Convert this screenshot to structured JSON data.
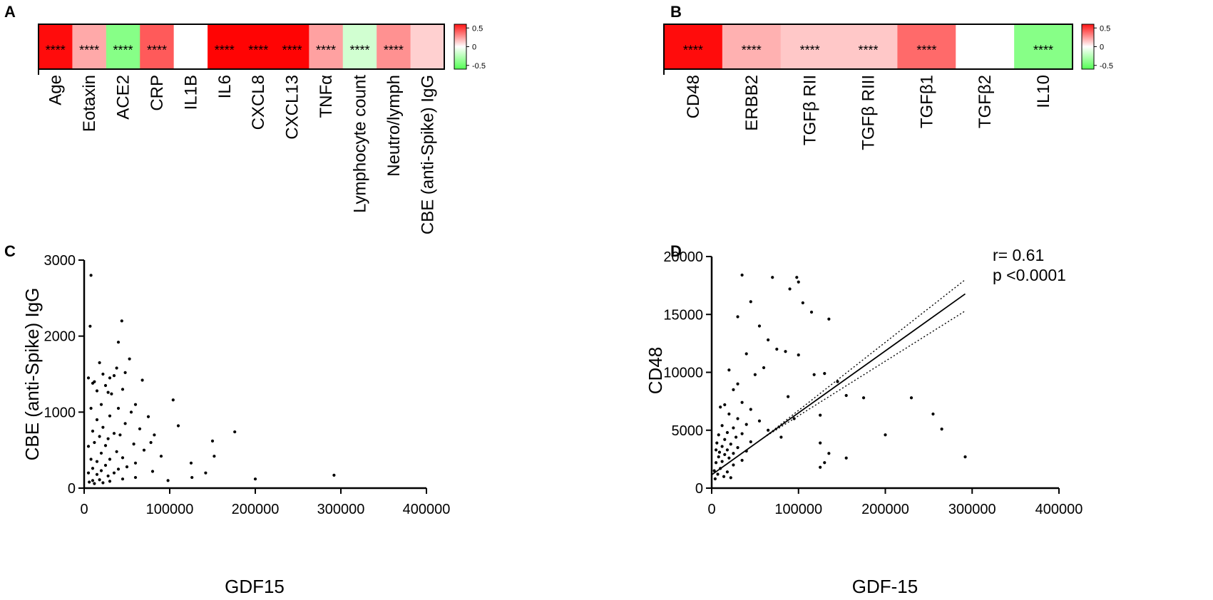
{
  "chart_data": [
    {
      "panel": "A",
      "type": "heatmap",
      "categories": [
        "Age",
        "Eotaxin",
        "ACE2",
        "CRP",
        "IL1B",
        "IL6",
        "CXCL8",
        "CXCL13",
        "TNFα",
        "Lymphocyte count",
        "Neutro/lymph",
        "CBE (anti-Spike) IgG"
      ],
      "values": [
        0.62,
        0.22,
        -0.42,
        0.42,
        0.0,
        0.64,
        0.64,
        0.64,
        0.24,
        -0.16,
        0.28,
        0.12
      ],
      "significance": [
        "****",
        "****",
        "****",
        "****",
        "",
        "****",
        "****",
        "****",
        "****",
        "****",
        "****",
        ""
      ],
      "colorbar": {
        "ticks": [
          "0.5",
          "0",
          "-0.5"
        ],
        "range": [
          -0.6,
          0.6
        ]
      }
    },
    {
      "panel": "B",
      "type": "heatmap",
      "categories": [
        "CD48",
        "ERBB2",
        "TGFβ RII",
        "TGFβ RIII",
        "TGFβ1",
        "TGFβ2",
        "IL10"
      ],
      "values": [
        0.62,
        0.2,
        0.14,
        0.14,
        0.38,
        0.0,
        -0.42
      ],
      "significance": [
        "****",
        "****",
        "****",
        "****",
        "****",
        "",
        "****"
      ],
      "colorbar": {
        "ticks": [
          "0.5",
          "0",
          "-0.5"
        ],
        "range": [
          -0.6,
          0.6
        ]
      }
    },
    {
      "panel": "C",
      "type": "scatter",
      "xlabel": "GDF15",
      "ylabel": "CBE (anti-Spike) IgG",
      "xlim": [
        0,
        400000
      ],
      "ylim": [
        0,
        3000
      ],
      "xticks": [
        "0",
        "100000",
        "200000",
        "300000",
        "400000"
      ],
      "yticks": [
        "0",
        "1000",
        "2000",
        "3000"
      ],
      "points": [
        [
          8000,
          2800
        ],
        [
          7000,
          2130
        ],
        [
          44000,
          2200
        ],
        [
          40000,
          1920
        ],
        [
          53000,
          1700
        ],
        [
          18000,
          1650
        ],
        [
          38000,
          1580
        ],
        [
          48000,
          1520
        ],
        [
          22000,
          1500
        ],
        [
          35000,
          1480
        ],
        [
          30000,
          1450
        ],
        [
          68000,
          1420
        ],
        [
          5000,
          1450
        ],
        [
          12000,
          1400
        ],
        [
          10000,
          1380
        ],
        [
          25000,
          1350
        ],
        [
          45000,
          1300
        ],
        [
          15000,
          1280
        ],
        [
          28000,
          1260
        ],
        [
          32000,
          1240
        ],
        [
          104000,
          1160
        ],
        [
          60000,
          1100
        ],
        [
          20000,
          1100
        ],
        [
          40000,
          1050
        ],
        [
          8000,
          1050
        ],
        [
          55000,
          1000
        ],
        [
          75000,
          940
        ],
        [
          30000,
          950
        ],
        [
          15000,
          900
        ],
        [
          48000,
          850
        ],
        [
          110000,
          820
        ],
        [
          22000,
          800
        ],
        [
          65000,
          780
        ],
        [
          176000,
          740
        ],
        [
          10000,
          750
        ],
        [
          35000,
          720
        ],
        [
          82000,
          700
        ],
        [
          42000,
          700
        ],
        [
          18000,
          680
        ],
        [
          28000,
          650
        ],
        [
          150000,
          620
        ],
        [
          78000,
          600
        ],
        [
          58000,
          580
        ],
        [
          12000,
          600
        ],
        [
          25000,
          560
        ],
        [
          5000,
          550
        ],
        [
          70000,
          500
        ],
        [
          38000,
          480
        ],
        [
          20000,
          460
        ],
        [
          90000,
          420
        ],
        [
          152000,
          420
        ],
        [
          45000,
          400
        ],
        [
          30000,
          380
        ],
        [
          8000,
          380
        ],
        [
          15000,
          350
        ],
        [
          60000,
          330
        ],
        [
          125000,
          330
        ],
        [
          25000,
          300
        ],
        [
          50000,
          280
        ],
        [
          40000,
          250
        ],
        [
          10000,
          260
        ],
        [
          20000,
          230
        ],
        [
          80000,
          220
        ],
        [
          35000,
          200
        ],
        [
          142000,
          200
        ],
        [
          5000,
          200
        ],
        [
          15000,
          180
        ],
        [
          28000,
          160
        ],
        [
          292000,
          170
        ],
        [
          126000,
          140
        ],
        [
          60000,
          140
        ],
        [
          200000,
          120
        ],
        [
          45000,
          120
        ],
        [
          18000,
          110
        ],
        [
          10000,
          100
        ],
        [
          98000,
          100
        ],
        [
          30000,
          90
        ],
        [
          6000,
          80
        ],
        [
          22000,
          70
        ],
        [
          12000,
          60
        ]
      ]
    },
    {
      "panel": "D",
      "type": "scatter",
      "xlabel": "GDF-15",
      "ylabel": "CD48",
      "xlim": [
        0,
        400000
      ],
      "ylim": [
        0,
        20000
      ],
      "xticks": [
        "0",
        "100000",
        "200000",
        "300000",
        "400000"
      ],
      "yticks": [
        "0",
        "5000",
        "10000",
        "15000",
        "20000"
      ],
      "annotation": [
        "r= 0.61",
        "p <0.0001"
      ],
      "regression": {
        "slope": 0.0535,
        "intercept": 1150,
        "x_range": [
          0,
          292000
        ],
        "ci_upper_end": 18000,
        "ci_lower_end": 15300
      },
      "points": [
        [
          35000,
          18400
        ],
        [
          70000,
          18200
        ],
        [
          98000,
          18200
        ],
        [
          100000,
          17800
        ],
        [
          90000,
          17200
        ],
        [
          45000,
          16100
        ],
        [
          105000,
          16000
        ],
        [
          115000,
          15200
        ],
        [
          30000,
          14800
        ],
        [
          135000,
          14600
        ],
        [
          55000,
          14000
        ],
        [
          65000,
          12800
        ],
        [
          75000,
          12000
        ],
        [
          85000,
          11800
        ],
        [
          100000,
          11500
        ],
        [
          40000,
          11600
        ],
        [
          20000,
          10200
        ],
        [
          60000,
          10400
        ],
        [
          118000,
          9800
        ],
        [
          50000,
          9800
        ],
        [
          130000,
          9900
        ],
        [
          145000,
          9200
        ],
        [
          30000,
          9000
        ],
        [
          25000,
          8500
        ],
        [
          155000,
          8000
        ],
        [
          88000,
          7900
        ],
        [
          175000,
          7800
        ],
        [
          230000,
          7800
        ],
        [
          35000,
          7400
        ],
        [
          15000,
          7200
        ],
        [
          10000,
          7000
        ],
        [
          45000,
          6800
        ],
        [
          20000,
          6400
        ],
        [
          255000,
          6400
        ],
        [
          125000,
          6300
        ],
        [
          95000,
          6000
        ],
        [
          30000,
          6000
        ],
        [
          55000,
          5800
        ],
        [
          40000,
          5500
        ],
        [
          265000,
          5100
        ],
        [
          12000,
          5400
        ],
        [
          25000,
          5200
        ],
        [
          65000,
          5000
        ],
        [
          18000,
          4800
        ],
        [
          35000,
          4700
        ],
        [
          200000,
          4600
        ],
        [
          8000,
          4600
        ],
        [
          80000,
          4400
        ],
        [
          28000,
          4400
        ],
        [
          15000,
          4200
        ],
        [
          45000,
          4000
        ],
        [
          22000,
          3800
        ],
        [
          6000,
          3900
        ],
        [
          125000,
          3900
        ],
        [
          12000,
          3600
        ],
        [
          30000,
          3500
        ],
        [
          18000,
          3300
        ],
        [
          40000,
          3200
        ],
        [
          5000,
          3300
        ],
        [
          9000,
          3100
        ],
        [
          25000,
          3000
        ],
        [
          15000,
          2900
        ],
        [
          135000,
          3000
        ],
        [
          292000,
          2700
        ],
        [
          155000,
          2600
        ],
        [
          8000,
          2700
        ],
        [
          20000,
          2600
        ],
        [
          35000,
          2400
        ],
        [
          12000,
          2300
        ],
        [
          130000,
          2200
        ],
        [
          5000,
          2200
        ],
        [
          25000,
          2000
        ],
        [
          125000,
          1800
        ],
        [
          10000,
          1700
        ],
        [
          3000,
          1500
        ],
        [
          18000,
          1400
        ],
        [
          7000,
          1200
        ],
        [
          14000,
          1000
        ],
        [
          22000,
          900
        ],
        [
          4000,
          800
        ]
      ]
    }
  ]
}
